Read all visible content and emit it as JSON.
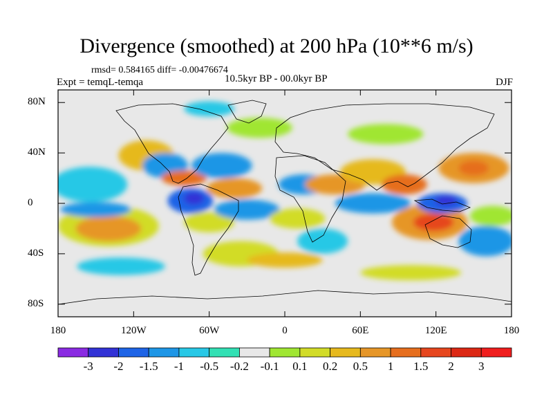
{
  "figure": {
    "title": "Divergence (smoothed) at 200 hPa (10**6 m/s)",
    "stats": "rmsd= 0.584165 diff= -0.00476674",
    "experiment": "Expt = temqL-temqa",
    "period": "10.5kyr BP - 00.0kyr BP",
    "season": "DJF"
  },
  "map": {
    "projection": "cylindrical equidistant",
    "lon_range": [
      -180,
      180
    ],
    "lat_range": [
      -90,
      90
    ],
    "background_color": "#e8e8e8",
    "lat_ticks": [
      {
        "value": 80,
        "label": "80N"
      },
      {
        "value": 40,
        "label": "40N"
      },
      {
        "value": 0,
        "label": "0"
      },
      {
        "value": -40,
        "label": "40S"
      },
      {
        "value": -80,
        "label": "80S"
      }
    ],
    "lon_ticks": [
      {
        "value": -180,
        "label": "180"
      },
      {
        "value": -120,
        "label": "120W"
      },
      {
        "value": -60,
        "label": "60W"
      },
      {
        "value": 0,
        "label": "0"
      },
      {
        "value": 60,
        "label": "60E"
      },
      {
        "value": 120,
        "label": "120E"
      },
      {
        "value": 180,
        "label": "180"
      }
    ]
  },
  "colorbar": {
    "colors": [
      "#8a2be2",
      "#3232d6",
      "#1e64e6",
      "#1e96e6",
      "#28c8e6",
      "#32e0b4",
      "#e8e8e8",
      "#a0e632",
      "#d2dc28",
      "#e6b91e",
      "#e69628",
      "#e66e1e",
      "#e6461e",
      "#dc2814",
      "#f01e1e"
    ],
    "labels": [
      "-3",
      "-2",
      "-1.5",
      "-1",
      "-0.5",
      "-0.2",
      "-0.1",
      "0.1",
      "0.2",
      "0.5",
      "1",
      "1.5",
      "2",
      "3"
    ]
  },
  "anomaly_blobs": [
    {
      "lon": -155,
      "lat": 15,
      "rx": 30,
      "ry": 14,
      "color": "#28c8e6"
    },
    {
      "lon": -140,
      "lat": -18,
      "rx": 40,
      "ry": 16,
      "color": "#d2dc28"
    },
    {
      "lon": -140,
      "lat": -20,
      "rx": 26,
      "ry": 10,
      "color": "#e69628"
    },
    {
      "lon": -150,
      "lat": -5,
      "rx": 28,
      "ry": 6,
      "color": "#1e96e6"
    },
    {
      "lon": -110,
      "lat": 38,
      "rx": 22,
      "ry": 12,
      "color": "#e6b91e"
    },
    {
      "lon": -95,
      "lat": 30,
      "rx": 18,
      "ry": 10,
      "color": "#1e96e6"
    },
    {
      "lon": -80,
      "lat": 20,
      "rx": 18,
      "ry": 6,
      "color": "#e66e1e"
    },
    {
      "lon": -75,
      "lat": 2,
      "rx": 18,
      "ry": 10,
      "color": "#1e64e6"
    },
    {
      "lon": -72,
      "lat": 4,
      "rx": 8,
      "ry": 5,
      "color": "#3232d6"
    },
    {
      "lon": -60,
      "lat": -15,
      "rx": 20,
      "ry": 8,
      "color": "#d2dc28"
    },
    {
      "lon": -50,
      "lat": 30,
      "rx": 24,
      "ry": 10,
      "color": "#1e96e6"
    },
    {
      "lon": -40,
      "lat": 12,
      "rx": 22,
      "ry": 8,
      "color": "#e69628"
    },
    {
      "lon": -30,
      "lat": -5,
      "rx": 26,
      "ry": 8,
      "color": "#1e96e6"
    },
    {
      "lon": -35,
      "lat": -40,
      "rx": 30,
      "ry": 10,
      "color": "#d2dc28"
    },
    {
      "lon": 15,
      "lat": 15,
      "rx": 20,
      "ry": 8,
      "color": "#1e96e6"
    },
    {
      "lon": 10,
      "lat": -12,
      "rx": 22,
      "ry": 8,
      "color": "#d2dc28"
    },
    {
      "lon": 30,
      "lat": -30,
      "rx": 20,
      "ry": 10,
      "color": "#28c8e6"
    },
    {
      "lon": 40,
      "lat": 15,
      "rx": 24,
      "ry": 8,
      "color": "#e69628"
    },
    {
      "lon": 70,
      "lat": 25,
      "rx": 26,
      "ry": 10,
      "color": "#e6b91e"
    },
    {
      "lon": 70,
      "lat": 0,
      "rx": 30,
      "ry": 8,
      "color": "#1e96e6"
    },
    {
      "lon": 95,
      "lat": 15,
      "rx": 18,
      "ry": 8,
      "color": "#e66e1e"
    },
    {
      "lon": 115,
      "lat": -15,
      "rx": 30,
      "ry": 14,
      "color": "#e69628"
    },
    {
      "lon": 118,
      "lat": -15,
      "rx": 16,
      "ry": 7,
      "color": "#e6461e"
    },
    {
      "lon": 125,
      "lat": 0,
      "rx": 20,
      "ry": 8,
      "color": "#1e64e6"
    },
    {
      "lon": 128,
      "lat": 2,
      "rx": 9,
      "ry": 4,
      "color": "#3232d6"
    },
    {
      "lon": 150,
      "lat": 28,
      "rx": 28,
      "ry": 12,
      "color": "#e69628"
    },
    {
      "lon": 150,
      "lat": 28,
      "rx": 12,
      "ry": 6,
      "color": "#e66e1e"
    },
    {
      "lon": 160,
      "lat": -30,
      "rx": 22,
      "ry": 12,
      "color": "#1e96e6"
    },
    {
      "lon": 165,
      "lat": -10,
      "rx": 18,
      "ry": 8,
      "color": "#a0e632"
    },
    {
      "lon": -20,
      "lat": 60,
      "rx": 26,
      "ry": 8,
      "color": "#a0e632"
    },
    {
      "lon": 80,
      "lat": 55,
      "rx": 30,
      "ry": 8,
      "color": "#a0e632"
    },
    {
      "lon": -60,
      "lat": 75,
      "rx": 20,
      "ry": 6,
      "color": "#28c8e6"
    },
    {
      "lon": 100,
      "lat": -55,
      "rx": 40,
      "ry": 6,
      "color": "#d2dc28"
    },
    {
      "lon": -130,
      "lat": -50,
      "rx": 35,
      "ry": 7,
      "color": "#28c8e6"
    },
    {
      "lon": 0,
      "lat": -45,
      "rx": 30,
      "ry": 6,
      "color": "#e6b91e"
    }
  ]
}
